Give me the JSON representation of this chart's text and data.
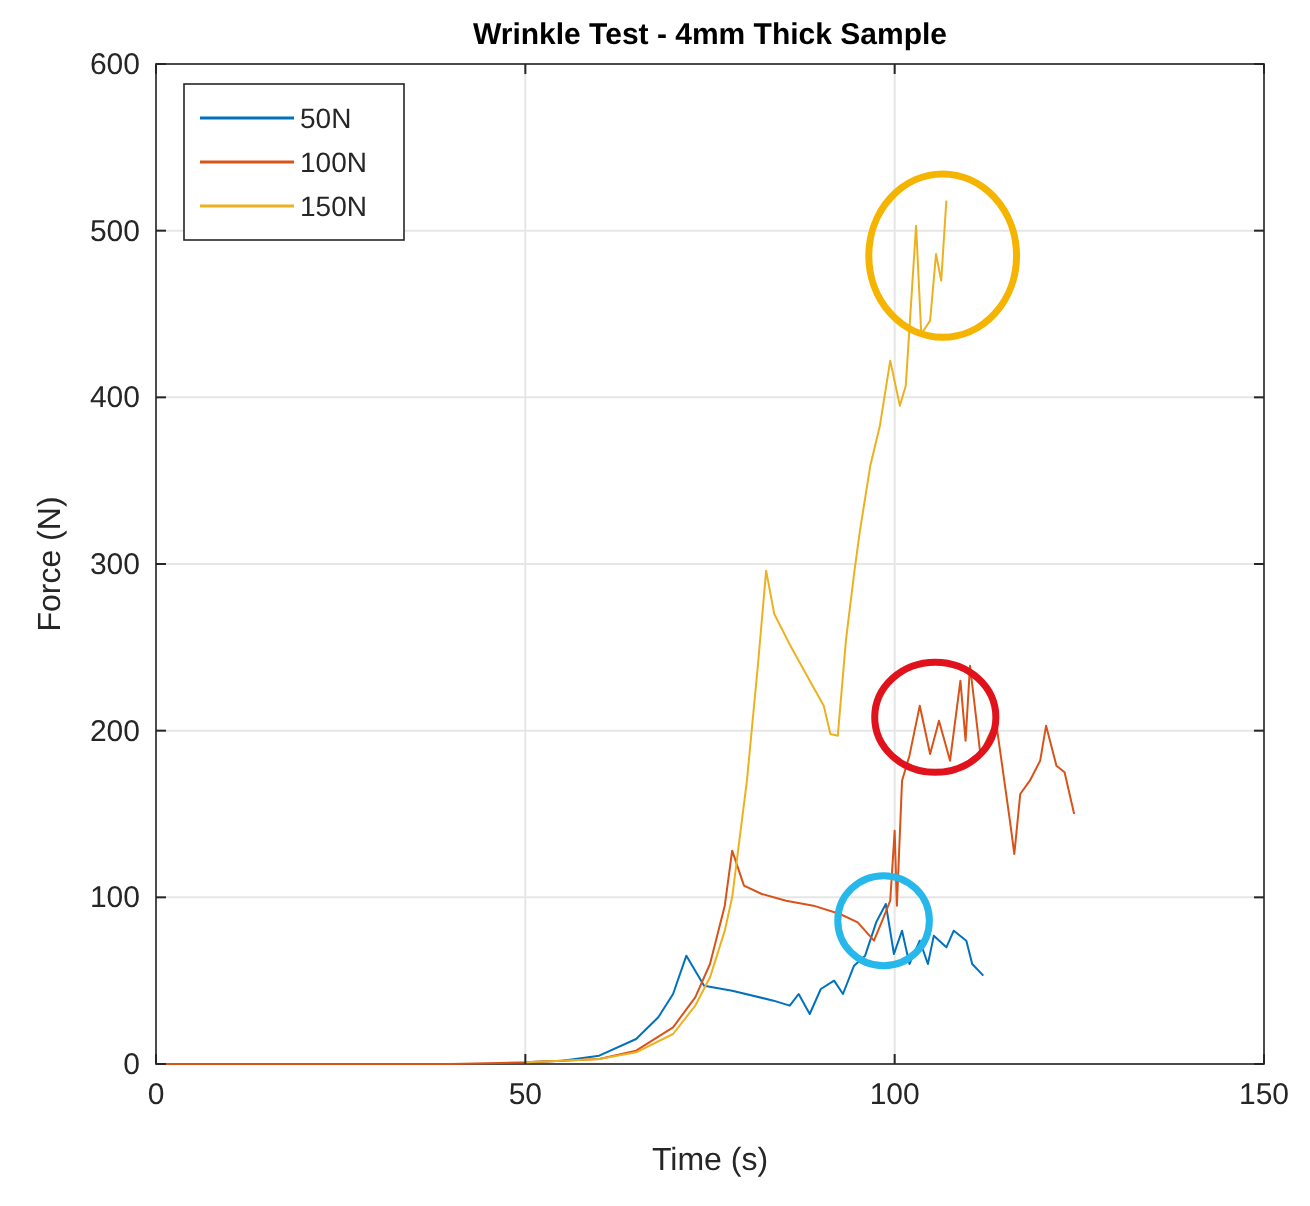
{
  "chart_data": {
    "type": "line",
    "title": "Wrinkle Test - 4mm Thick Sample",
    "xlabel": "Time (s)",
    "ylabel": "Force (N)",
    "xlim": [
      0,
      150
    ],
    "xticks": [
      0,
      50,
      100,
      150
    ],
    "ylim": [
      0,
      600
    ],
    "yticks": [
      0,
      100,
      200,
      300,
      400,
      500,
      600
    ],
    "grid": true,
    "legend": "top left",
    "series": [
      {
        "name": "50N",
        "color": "#0072bd",
        "x": [
          50,
          55,
          60,
          65,
          68,
          70,
          71.8,
          74.2,
          78,
          83.6,
          85.8,
          87,
          88.5,
          90,
          91.8,
          93,
          94.5,
          96,
          97.5,
          98.8,
          99.9,
          101,
          102,
          103.4,
          104.5,
          105.3,
          107,
          108,
          109.7,
          110.5,
          112
        ],
        "values": [
          1,
          2,
          5,
          15,
          28,
          42,
          65,
          47,
          44,
          38,
          35,
          42,
          30,
          45,
          50,
          42,
          59,
          65,
          85,
          96,
          66,
          80,
          60,
          74,
          60,
          77,
          70,
          80,
          74,
          60,
          53
        ]
      },
      {
        "name": "100N",
        "color": "#d95319",
        "x": [
          0,
          40,
          50,
          55,
          60,
          65,
          70,
          73,
          75,
          77,
          78,
          79.6,
          82,
          85.3,
          89,
          92.6,
          95,
          97.2,
          98.5,
          99.4,
          100,
          100.3,
          101,
          102,
          103.4,
          104.8,
          106,
          107.5,
          108.9,
          109.6,
          110.2,
          111.6,
          113.7,
          115.6,
          116.2,
          117,
          118.3,
          119.7,
          120.5,
          121.9,
          123,
          124.3
        ],
        "values": [
          0,
          0,
          1,
          2,
          3,
          8,
          22,
          40,
          60,
          95,
          128,
          107,
          102,
          98,
          95,
          90,
          85,
          74,
          88,
          98,
          140,
          95,
          170,
          185,
          215,
          186,
          206,
          182,
          230,
          194,
          239,
          186,
          206,
          146,
          126,
          162,
          170,
          182,
          203,
          179,
          175,
          150
        ]
      },
      {
        "name": "150N",
        "color": "#edb120",
        "x": [
          50,
          55,
          60,
          65,
          70,
          73,
          75,
          77,
          78,
          80,
          81.5,
          82.6,
          83.7,
          86,
          88,
          90.4,
          91.3,
          92.3,
          93.4,
          94.5,
          95.3,
          96.7,
          98,
          99.4,
          100.7,
          101.5,
          102.9,
          103.6,
          104.8,
          105.6,
          106.3,
          107
        ],
        "values": [
          1,
          2,
          3,
          7,
          18,
          35,
          52,
          80,
          100,
          170,
          240,
          296,
          270,
          250,
          234,
          215,
          198,
          197,
          254,
          294,
          320,
          359,
          383,
          422,
          395,
          407,
          503,
          438,
          446,
          486,
          470,
          518
        ]
      }
    ]
  }
}
